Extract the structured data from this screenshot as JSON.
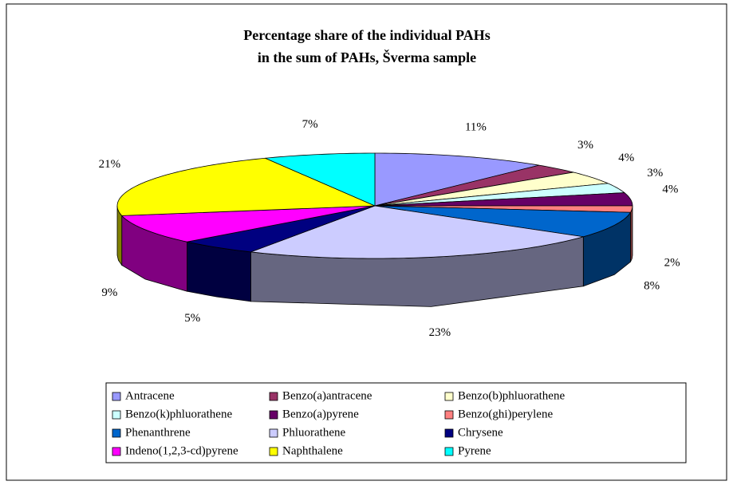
{
  "chart_data": {
    "type": "pie3d",
    "title": [
      "Percentage share of the individual PAHs",
      "in the sum of PAHs, Šverma sample"
    ],
    "categories": [
      "Antracene",
      "Benzo(a)antracene",
      "Benzo(b)phluorathene",
      "Benzo(k)phluorathene",
      "Benzo(a)pyrene",
      "Benzo(ghi)perylene",
      "Phenanthrene",
      "Phluorathene",
      "Chrysene",
      "Indeno(1,2,3-cd)pyrene",
      "Naphthalene",
      "Pyrene"
    ],
    "values": [
      11,
      3,
      4,
      3,
      4,
      2,
      8,
      23,
      5,
      9,
      21,
      7
    ],
    "value_labels": [
      "11%",
      "3%",
      "4%",
      "3%",
      "4%",
      "2%",
      "8%",
      "23%",
      "5%",
      "9%",
      "21%",
      "7%"
    ],
    "colors": [
      "#9999ff",
      "#993366",
      "#ffffcc",
      "#ccffff",
      "#660066",
      "#ff8080",
      "#0066cc",
      "#ccccff",
      "#000080",
      "#ff00ff",
      "#ffff00",
      "#00ffff"
    ],
    "legend": "bottom"
  }
}
